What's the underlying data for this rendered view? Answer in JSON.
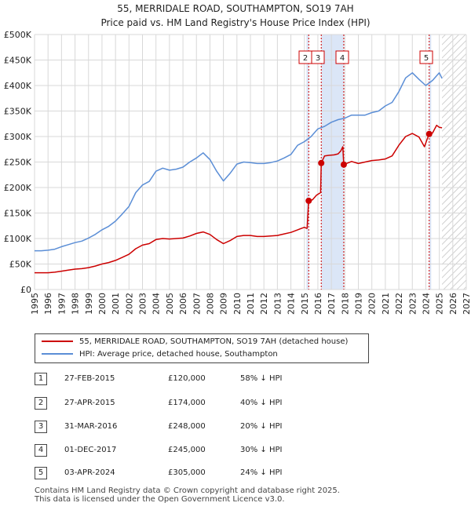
{
  "title": "55, MERRIDALE ROAD, SOUTHAMPTON, SO19 7AH",
  "subtitle": "Price paid vs. HM Land Registry's House Price Index (HPI)",
  "colors": {
    "property": "#cc0000",
    "hpi": "#5b8ed6",
    "grid": "#d8d8d8",
    "sale_band": "#dbe6f7",
    "future_hatch": "#c0c0c0",
    "axis_text": "#222222"
  },
  "legend": {
    "property_label": "55, MERRIDALE ROAD, SOUTHAMPTON, SO19 7AH (detached house)",
    "hpi_label": "HPI: Average price, detached house, Southampton"
  },
  "transactions": [
    {
      "num": "1",
      "date": "27-FEB-2015",
      "price": "£120,000",
      "hpi": "58% ↓ HPI"
    },
    {
      "num": "2",
      "date": "27-APR-2015",
      "price": "£174,000",
      "hpi": "40% ↓ HPI"
    },
    {
      "num": "3",
      "date": "31-MAR-2016",
      "price": "£248,000",
      "hpi": "20% ↓ HPI"
    },
    {
      "num": "4",
      "date": "01-DEC-2017",
      "price": "£245,000",
      "hpi": "30% ↓ HPI"
    },
    {
      "num": "5",
      "date": "03-APR-2024",
      "price": "£305,000",
      "hpi": "24% ↓ HPI"
    }
  ],
  "footer": {
    "line1": "Contains HM Land Registry data © Crown copyright and database right 2025.",
    "line2": "This data is licensed under the Open Government Licence v3.0."
  },
  "chart_data": {
    "type": "line",
    "title": "55, MERRIDALE ROAD, SOUTHAMPTON, SO19 7AH",
    "subtitle": "Price paid vs. HM Land Registry's House Price Index (HPI)",
    "xlabel": "",
    "ylabel": "",
    "xlim": [
      1995,
      2027
    ],
    "ylim": [
      0,
      500000
    ],
    "x_ticks": [
      "1995",
      "1996",
      "1997",
      "1998",
      "1999",
      "2000",
      "2001",
      "2002",
      "2003",
      "2004",
      "2005",
      "2006",
      "2007",
      "2008",
      "2009",
      "2010",
      "2011",
      "2012",
      "2013",
      "2014",
      "2015",
      "2016",
      "2017",
      "2018",
      "2019",
      "2020",
      "2021",
      "2022",
      "2023",
      "2024",
      "2025",
      "2026",
      "2027"
    ],
    "y_ticks": [
      {
        "value": 0,
        "label": "£0"
      },
      {
        "value": 50000,
        "label": "£50K"
      },
      {
        "value": 100000,
        "label": "£100K"
      },
      {
        "value": 150000,
        "label": "£150K"
      },
      {
        "value": 200000,
        "label": "£200K"
      },
      {
        "value": 250000,
        "label": "£250K"
      },
      {
        "value": 300000,
        "label": "£300K"
      },
      {
        "value": 350000,
        "label": "£350K"
      },
      {
        "value": 400000,
        "label": "£400K"
      },
      {
        "value": 450000,
        "label": "£450K"
      },
      {
        "value": 500000,
        "label": "£500K"
      }
    ],
    "grid": true,
    "future_start": 2025.2,
    "sale_bands": [
      {
        "from": 2015.15,
        "to": 2015.32
      },
      {
        "from": 2016.25,
        "to": 2017.92
      },
      {
        "from": 2024.25,
        "to": 2024.4
      }
    ],
    "markers": [
      {
        "label": "2",
        "x": 2015.32,
        "value": 174000
      },
      {
        "label": "3",
        "x": 2016.25,
        "value": 248000
      },
      {
        "label": "4",
        "x": 2017.92,
        "value": 245000
      },
      {
        "label": "5",
        "x": 2024.25,
        "value": 305000
      }
    ],
    "series": [
      {
        "name": "HPI: Average price, detached house, Southampton",
        "x": [
          1995,
          1995.5,
          1996,
          1996.5,
          1997,
          1997.5,
          1998,
          1998.5,
          1999,
          1999.5,
          2000,
          2000.5,
          2001,
          2001.5,
          2002,
          2002.5,
          2003,
          2003.5,
          2004,
          2004.5,
          2005,
          2005.5,
          2006,
          2006.5,
          2007,
          2007.5,
          2008,
          2008.5,
          2009,
          2009.5,
          2010,
          2010.5,
          2011,
          2011.5,
          2012,
          2012.5,
          2013,
          2013.5,
          2014,
          2014.5,
          2015,
          2015.5,
          2016,
          2016.5,
          2017,
          2017.5,
          2018,
          2018.5,
          2019,
          2019.5,
          2020,
          2020.5,
          2021,
          2021.5,
          2022,
          2022.5,
          2023,
          2023.5,
          2024,
          2024.5,
          2025,
          2025.2
        ],
        "values": [
          76000,
          76000,
          77000,
          79000,
          84000,
          88000,
          92000,
          95000,
          101000,
          108000,
          117000,
          124000,
          134000,
          148000,
          163000,
          190000,
          205000,
          212000,
          232000,
          238000,
          234000,
          236000,
          240000,
          250000,
          258000,
          268000,
          255000,
          232000,
          213000,
          228000,
          246000,
          250000,
          249000,
          247000,
          247000,
          249000,
          252000,
          258000,
          265000,
          283000,
          290000,
          300000,
          315000,
          320000,
          328000,
          333000,
          336000,
          342000,
          342000,
          342000,
          347000,
          350000,
          360000,
          367000,
          388000,
          415000,
          425000,
          412000,
          400000,
          410000,
          425000,
          414000
        ]
      },
      {
        "name": "55, MERRIDALE ROAD, SOUTHAMPTON, SO19 7AH (detached house)",
        "x": [
          1995,
          1995.5,
          1996,
          1996.5,
          1997,
          1997.5,
          1998,
          1998.5,
          1999,
          1999.5,
          2000,
          2000.5,
          2001,
          2001.5,
          2002,
          2002.5,
          2003,
          2003.5,
          2004,
          2004.5,
          2005,
          2005.5,
          2006,
          2006.5,
          2007,
          2007.5,
          2008,
          2008.5,
          2009,
          2009.5,
          2010,
          2010.5,
          2011,
          2011.5,
          2012,
          2012.5,
          2013,
          2013.5,
          2014,
          2014.5,
          2015,
          2015.16,
          2015.2,
          2015.32,
          2015.6,
          2015.9,
          2016.2,
          2016.25,
          2016.5,
          2016.8,
          2017.2,
          2017.5,
          2017.7,
          2017.85,
          2017.92,
          2018.2,
          2018.5,
          2019,
          2019.5,
          2020,
          2020.5,
          2021,
          2021.5,
          2022,
          2022.5,
          2023,
          2023.5,
          2023.9,
          2024.1,
          2024.25,
          2024.5,
          2024.8,
          2025,
          2025.2
        ],
        "values": [
          33000,
          33000,
          33000,
          34000,
          36000,
          38000,
          40000,
          41000,
          43000,
          46000,
          50000,
          53000,
          57000,
          63000,
          69000,
          80000,
          87000,
          90000,
          98000,
          100000,
          99000,
          100000,
          101000,
          105000,
          110000,
          113000,
          108000,
          98000,
          90000,
          96000,
          104000,
          106000,
          106000,
          104000,
          104000,
          105000,
          106000,
          109000,
          112000,
          117000,
          122000,
          120000,
          120000,
          174000,
          176000,
          185000,
          190000,
          248000,
          262000,
          263000,
          264000,
          266000,
          272000,
          280000,
          245000,
          248000,
          251000,
          247000,
          250000,
          253000,
          254000,
          256000,
          262000,
          283000,
          300000,
          306000,
          299000,
          280000,
          295000,
          305000,
          307000,
          322000,
          318000,
          317000
        ]
      }
    ]
  }
}
